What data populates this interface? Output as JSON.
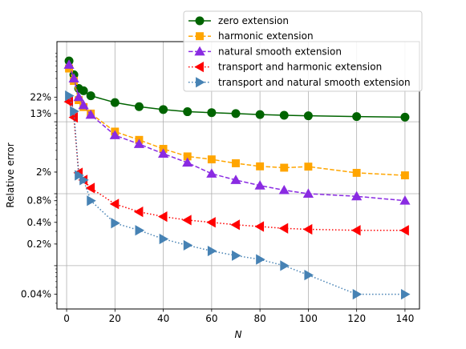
{
  "chart_data": {
    "type": "line",
    "title": "",
    "xlabel": "N",
    "ylabel": "Relative error",
    "xlim": [
      -4,
      146
    ],
    "xticks": [
      0,
      20,
      40,
      60,
      80,
      100,
      120,
      140
    ],
    "xtick_labels": [
      "0",
      "20",
      "40",
      "60",
      "80",
      "100",
      "120",
      "140"
    ],
    "y_scale": "log",
    "ylim": [
      0.025,
      130
    ],
    "yticks": [
      {
        "value": 22,
        "label": "22%"
      },
      {
        "value": 13,
        "label": "13%"
      },
      {
        "value": 2,
        "label": "2%"
      },
      {
        "value": 0.8,
        "label": "0.8%"
      },
      {
        "value": 0.4,
        "label": "0.4%"
      },
      {
        "value": 0.2,
        "label": "0.2%"
      },
      {
        "value": 0.04,
        "label": "0.04%"
      }
    ],
    "major_gridlines": [
      0.1,
      1,
      10
    ],
    "minor_ticks": [
      0.03,
      0.04,
      0.05,
      0.06,
      0.07,
      0.08,
      0.09,
      0.2,
      0.3,
      0.4,
      0.5,
      0.6,
      0.7,
      0.8,
      0.9,
      2,
      3,
      4,
      5,
      6,
      7,
      8,
      9,
      20,
      30,
      40,
      50,
      60,
      70,
      80,
      90
    ],
    "grid": true,
    "legend_position": "top-right",
    "series": [
      {
        "name": "zero extension",
        "color": "#006400",
        "marker": "circle",
        "linestyle": "solid",
        "x": [
          1,
          3,
          5,
          7,
          10,
          20,
          30,
          40,
          50,
          60,
          70,
          80,
          90,
          100,
          120,
          140
        ],
        "y": [
          70,
          45,
          29,
          27,
          23,
          18.5,
          16.2,
          14.8,
          13.8,
          13.4,
          13.0,
          12.6,
          12.3,
          12.1,
          11.8,
          11.6
        ]
      },
      {
        "name": "harmonic extension",
        "color": "#FFA500",
        "marker": "square",
        "linestyle": "dashed",
        "x": [
          1,
          3,
          5,
          7,
          10,
          20,
          30,
          40,
          50,
          60,
          70,
          80,
          90,
          100,
          120,
          140
        ],
        "y": [
          55,
          37,
          20,
          16,
          13,
          7.3,
          5.6,
          4.2,
          3.3,
          3.0,
          2.65,
          2.4,
          2.3,
          2.38,
          1.95,
          1.8
        ]
      },
      {
        "name": "natural smooth extension",
        "color": "#8A2BE2",
        "marker": "triangle-up",
        "linestyle": "dashed",
        "x": [
          1,
          3,
          5,
          7,
          10,
          20,
          30,
          40,
          50,
          60,
          70,
          80,
          90,
          100,
          120,
          140
        ],
        "y": [
          62,
          40,
          22,
          17,
          12.5,
          6.5,
          4.9,
          3.6,
          2.7,
          1.9,
          1.55,
          1.3,
          1.12,
          1.0,
          0.92,
          0.8
        ]
      },
      {
        "name": "transport and harmonic extension",
        "color": "#FF0000",
        "marker": "triangle-left",
        "linestyle": "dotted",
        "x": [
          1,
          3,
          5,
          7,
          10,
          20,
          30,
          40,
          50,
          60,
          70,
          80,
          90,
          100,
          120,
          140
        ],
        "y": [
          19,
          11.5,
          1.95,
          1.55,
          1.2,
          0.72,
          0.56,
          0.48,
          0.43,
          0.4,
          0.37,
          0.35,
          0.33,
          0.32,
          0.31,
          0.31
        ]
      },
      {
        "name": "transport and natural smooth extension",
        "color": "#4682B4",
        "marker": "triangle-right",
        "linestyle": "dotted",
        "x": [
          1,
          3,
          5,
          7,
          10,
          20,
          30,
          40,
          50,
          60,
          70,
          80,
          90,
          100,
          120,
          140
        ],
        "y": [
          23,
          14,
          1.8,
          1.55,
          0.8,
          0.39,
          0.31,
          0.235,
          0.192,
          0.16,
          0.138,
          0.122,
          0.1,
          0.074,
          0.04,
          0.04
        ]
      }
    ]
  }
}
